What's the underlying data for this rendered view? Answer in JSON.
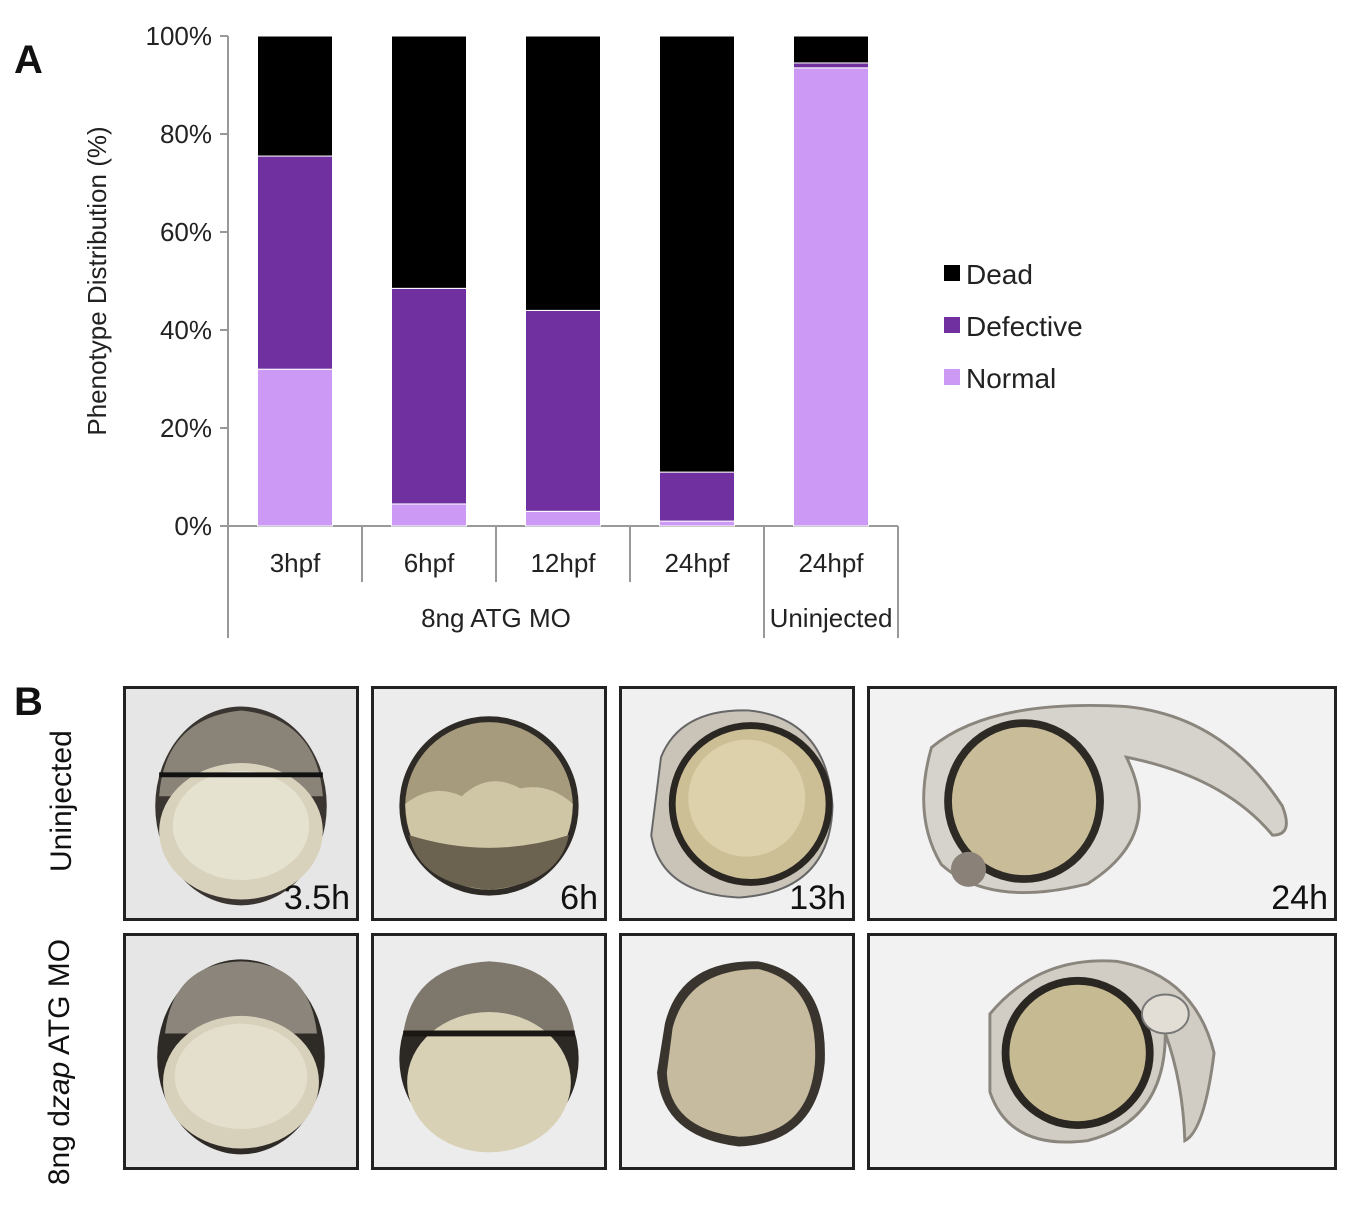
{
  "panels": {
    "a_label": "A",
    "b_label": "B"
  },
  "chart_data": {
    "type": "bar",
    "stacked": true,
    "ylabel": "Phenotype Distribution (%)",
    "yticks": [
      "0%",
      "20%",
      "40%",
      "60%",
      "80%",
      "100%"
    ],
    "ylim": [
      0,
      100
    ],
    "categories": [
      "3hpf",
      "6hpf",
      "12hpf",
      "24hpf",
      "24hpf"
    ],
    "groups": [
      {
        "label": "8ng ATG MO",
        "categories": [
          0,
          1,
          2,
          3
        ]
      },
      {
        "label": "Uninjected",
        "categories": [
          4
        ]
      }
    ],
    "series": [
      {
        "name": "Normal",
        "color": "#cc99f5",
        "values": [
          32,
          4.5,
          3,
          1,
          93.5
        ]
      },
      {
        "name": "Defective",
        "color": "#70309f",
        "values": [
          43.5,
          44,
          41,
          10,
          1
        ]
      },
      {
        "name": "Dead",
        "color": "#000000",
        "values": [
          24.5,
          51.5,
          56,
          89,
          5.5
        ]
      }
    ],
    "legend": {
      "position": "right",
      "order": [
        "Dead",
        "Defective",
        "Normal"
      ]
    },
    "grid": false
  },
  "images": {
    "row_labels": {
      "top": "Uninjected",
      "bottom_prefix": "8ng d",
      "bottom_italic": "zap",
      "bottom_suffix": " ATG MO"
    },
    "time_labels": [
      "3.5h",
      "6h",
      "13h",
      "24h"
    ]
  }
}
